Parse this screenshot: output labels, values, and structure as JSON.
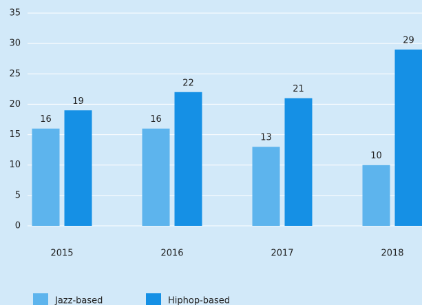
{
  "chart_data": {
    "type": "bar",
    "categories": [
      "2015",
      "2016",
      "2017",
      "2018"
    ],
    "series": [
      {
        "name": "Jazz-based",
        "color": "#5db4ed",
        "values": [
          16,
          16,
          13,
          10
        ]
      },
      {
        "name": "Hiphop-based",
        "color": "#1590e5",
        "values": [
          19,
          22,
          21,
          29
        ]
      }
    ],
    "ylim": [
      0,
      35
    ],
    "yticks": [
      0,
      5,
      10,
      15,
      20,
      25,
      30,
      35
    ],
    "grid": true,
    "legend": "bottom"
  }
}
